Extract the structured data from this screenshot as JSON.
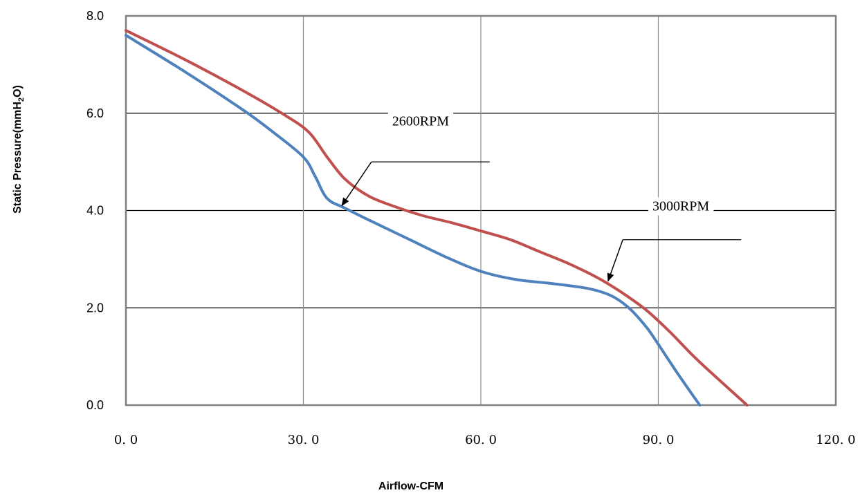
{
  "chart_data": {
    "type": "line",
    "title": "",
    "xlabel": "Airflow-CFM",
    "ylabel": "Static Pressure(mmH2O)",
    "ylabel_parts": {
      "pre": "Static Pressure(mmH",
      "sub": "2",
      "post": "O)"
    },
    "xlim": [
      0,
      120
    ],
    "ylim": [
      0,
      8
    ],
    "x_ticks": [
      0,
      30,
      60,
      90,
      120
    ],
    "x_tick_labels": [
      "0. 0",
      "30. 0",
      "60. 0",
      "90. 0",
      "120. 0"
    ],
    "y_ticks": [
      0,
      2,
      4,
      6,
      8
    ],
    "y_tick_labels": [
      "0.0",
      "2.0",
      "4.0",
      "6.0",
      "8.0"
    ],
    "grid": true,
    "series": [
      {
        "name": "3000RPM",
        "color": "#c0504d",
        "points": [
          [
            0,
            7.7
          ],
          [
            10,
            7.1
          ],
          [
            20,
            6.45
          ],
          [
            27,
            5.95
          ],
          [
            31,
            5.6
          ],
          [
            34,
            5.1
          ],
          [
            37,
            4.65
          ],
          [
            41,
            4.3
          ],
          [
            45,
            4.1
          ],
          [
            50,
            3.9
          ],
          [
            55,
            3.75
          ],
          [
            60,
            3.58
          ],
          [
            65,
            3.4
          ],
          [
            70,
            3.15
          ],
          [
            75,
            2.9
          ],
          [
            80,
            2.6
          ],
          [
            84,
            2.3
          ],
          [
            88,
            1.95
          ],
          [
            92,
            1.5
          ],
          [
            96,
            1.0
          ],
          [
            100,
            0.55
          ],
          [
            105,
            0.0
          ]
        ]
      },
      {
        "name": "2600RPM",
        "color": "#4f81bd",
        "points": [
          [
            0,
            7.6
          ],
          [
            10,
            6.85
          ],
          [
            20,
            6.05
          ],
          [
            25,
            5.6
          ],
          [
            30,
            5.1
          ],
          [
            32,
            4.7
          ],
          [
            34,
            4.25
          ],
          [
            37,
            4.05
          ],
          [
            42,
            3.75
          ],
          [
            48,
            3.4
          ],
          [
            54,
            3.05
          ],
          [
            60,
            2.75
          ],
          [
            66,
            2.58
          ],
          [
            72,
            2.5
          ],
          [
            78,
            2.4
          ],
          [
            82,
            2.25
          ],
          [
            85,
            2.0
          ],
          [
            88,
            1.6
          ],
          [
            90,
            1.25
          ],
          [
            93,
            0.7
          ],
          [
            97,
            0.0
          ]
        ]
      }
    ],
    "annotations": [
      {
        "text": "2600RPM",
        "label_at": [
          45,
          5.75
        ],
        "line_y": 5.0,
        "line_from_x": 41.5,
        "line_to_x": 61.5,
        "arrow_to": [
          36.5,
          4.1
        ]
      },
      {
        "text": "3000RPM",
        "label_at": [
          89,
          4.0
        ],
        "line_y": 3.4,
        "line_from_x": 84,
        "line_to_x": 104,
        "arrow_to": [
          81.5,
          2.55
        ]
      }
    ]
  }
}
